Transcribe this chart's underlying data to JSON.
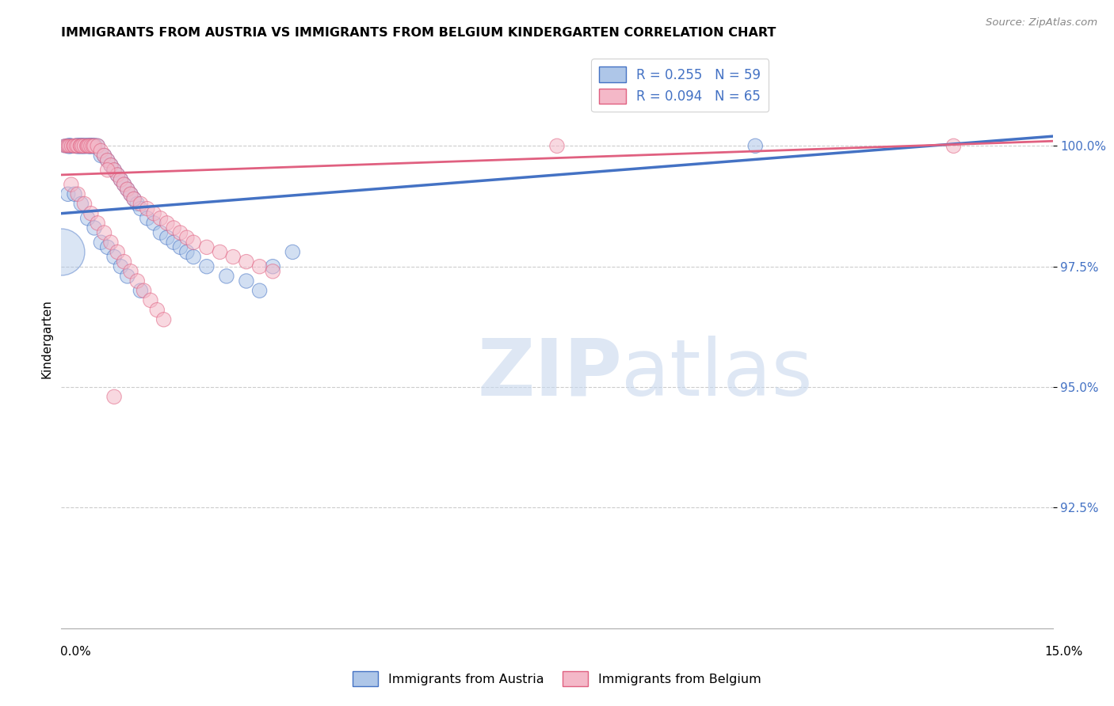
{
  "title": "IMMIGRANTS FROM AUSTRIA VS IMMIGRANTS FROM BELGIUM KINDERGARTEN CORRELATION CHART",
  "source": "Source: ZipAtlas.com",
  "ylabel": "Kindergarten",
  "yticks": [
    92.5,
    95.0,
    97.5,
    100.0
  ],
  "ytick_labels": [
    "92.5%",
    "95.0%",
    "97.5%",
    "100.0%"
  ],
  "xlim": [
    0.0,
    15.0
  ],
  "ylim": [
    90.0,
    102.0
  ],
  "R_austria": 0.255,
  "N_austria": 59,
  "R_belgium": 0.094,
  "N_belgium": 65,
  "color_austria": "#aec6e8",
  "color_belgium": "#f4b8c8",
  "trendline_color_austria": "#4472c4",
  "trendline_color_belgium": "#e06080",
  "legend_label_austria": "Immigrants from Austria",
  "legend_label_belgium": "Immigrants from Belgium",
  "austria_x": [
    0.05,
    0.08,
    0.1,
    0.12,
    0.15,
    0.18,
    0.2,
    0.22,
    0.25,
    0.28,
    0.3,
    0.32,
    0.35,
    0.38,
    0.4,
    0.42,
    0.45,
    0.48,
    0.5,
    0.55,
    0.6,
    0.65,
    0.7,
    0.75,
    0.8,
    0.85,
    0.9,
    0.95,
    1.0,
    1.05,
    1.1,
    1.15,
    1.2,
    1.3,
    1.4,
    1.5,
    1.6,
    1.7,
    1.8,
    1.9,
    2.0,
    2.2,
    2.5,
    2.8,
    3.0,
    3.2,
    3.5,
    0.1,
    0.2,
    0.3,
    0.4,
    0.5,
    0.6,
    0.7,
    0.8,
    0.9,
    1.0,
    1.2,
    10.5
  ],
  "austria_y": [
    100.0,
    100.0,
    100.0,
    100.0,
    100.0,
    100.0,
    100.0,
    100.0,
    100.0,
    100.0,
    100.0,
    100.0,
    100.0,
    100.0,
    100.0,
    100.0,
    100.0,
    100.0,
    100.0,
    100.0,
    99.8,
    99.8,
    99.7,
    99.6,
    99.5,
    99.4,
    99.3,
    99.2,
    99.1,
    99.0,
    98.9,
    98.8,
    98.7,
    98.5,
    98.4,
    98.2,
    98.1,
    98.0,
    97.9,
    97.8,
    97.7,
    97.5,
    97.3,
    97.2,
    97.0,
    97.5,
    97.8,
    99.0,
    99.0,
    98.8,
    98.5,
    98.3,
    98.0,
    97.9,
    97.7,
    97.5,
    97.3,
    97.0,
    100.0
  ],
  "austria_size": [
    30,
    30,
    30,
    40,
    35,
    30,
    30,
    35,
    40,
    35,
    40,
    35,
    40,
    35,
    35,
    40,
    40,
    35,
    40,
    35,
    35,
    35,
    35,
    35,
    35,
    35,
    35,
    35,
    35,
    35,
    35,
    35,
    35,
    35,
    35,
    35,
    35,
    35,
    35,
    35,
    35,
    35,
    35,
    35,
    35,
    35,
    35,
    35,
    35,
    35,
    35,
    35,
    35,
    35,
    35,
    35,
    35,
    35,
    35
  ],
  "belgium_x": [
    0.05,
    0.08,
    0.1,
    0.12,
    0.15,
    0.18,
    0.2,
    0.22,
    0.25,
    0.28,
    0.3,
    0.32,
    0.35,
    0.38,
    0.4,
    0.42,
    0.45,
    0.48,
    0.5,
    0.55,
    0.6,
    0.65,
    0.7,
    0.75,
    0.8,
    0.85,
    0.9,
    0.95,
    1.0,
    1.05,
    1.1,
    1.2,
    1.3,
    1.4,
    1.5,
    1.6,
    1.7,
    1.8,
    1.9,
    2.0,
    2.2,
    2.4,
    2.6,
    2.8,
    3.0,
    3.2,
    0.15,
    0.25,
    0.35,
    0.45,
    0.55,
    0.65,
    0.75,
    0.85,
    0.95,
    1.05,
    1.15,
    1.25,
    1.35,
    1.45,
    1.55,
    7.5,
    0.7,
    13.5,
    0.8
  ],
  "belgium_y": [
    100.0,
    100.0,
    100.0,
    100.0,
    100.0,
    100.0,
    100.0,
    100.0,
    100.0,
    100.0,
    100.0,
    100.0,
    100.0,
    100.0,
    100.0,
    100.0,
    100.0,
    100.0,
    100.0,
    100.0,
    99.9,
    99.8,
    99.7,
    99.6,
    99.5,
    99.4,
    99.3,
    99.2,
    99.1,
    99.0,
    98.9,
    98.8,
    98.7,
    98.6,
    98.5,
    98.4,
    98.3,
    98.2,
    98.1,
    98.0,
    97.9,
    97.8,
    97.7,
    97.6,
    97.5,
    97.4,
    99.2,
    99.0,
    98.8,
    98.6,
    98.4,
    98.2,
    98.0,
    97.8,
    97.6,
    97.4,
    97.2,
    97.0,
    96.8,
    96.6,
    96.4,
    100.0,
    99.5,
    100.0,
    94.8
  ],
  "belgium_size": [
    30,
    30,
    30,
    30,
    30,
    30,
    35,
    30,
    35,
    30,
    35,
    35,
    35,
    30,
    35,
    35,
    35,
    35,
    35,
    35,
    35,
    35,
    35,
    35,
    35,
    35,
    35,
    35,
    35,
    35,
    35,
    35,
    35,
    35,
    35,
    35,
    35,
    35,
    35,
    35,
    35,
    35,
    35,
    35,
    35,
    35,
    35,
    35,
    35,
    35,
    35,
    35,
    35,
    35,
    35,
    35,
    35,
    35,
    35,
    35,
    35,
    35,
    35,
    35,
    35
  ],
  "austria_large_x": 0.0,
  "austria_large_y": 97.8,
  "austria_large_size": 1800
}
